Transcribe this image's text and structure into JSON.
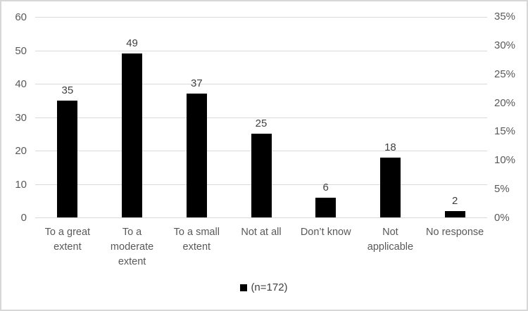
{
  "chart_data": {
    "type": "bar",
    "title": "",
    "xlabel": "",
    "ylabel": "",
    "categories": [
      "To a great extent",
      "To a moderate extent",
      "To a small extent",
      "Not at all",
      "Don’t know",
      "Not applicable",
      "No response"
    ],
    "series": [
      {
        "name": "(n=172)",
        "values": [
          35,
          49,
          37,
          25,
          6,
          18,
          2
        ]
      }
    ],
    "data_labels_shown": true,
    "left_axis": {
      "min": 0,
      "max": 60,
      "tick_step": 10,
      "ticks": [
        "0",
        "10",
        "20",
        "30",
        "40",
        "50",
        "60"
      ]
    },
    "right_axis": {
      "min_percent": 0,
      "max_percent": 35,
      "tick_step_percent": 5,
      "ticks": [
        "0%",
        "5%",
        "10%",
        "15%",
        "20%",
        "25%",
        "30%",
        "35%"
      ],
      "n_total": 172
    },
    "grid": "horizontal",
    "legend_position": "bottom",
    "bar_color": "#000000"
  },
  "legend": {
    "label": "(n=172)",
    "swatch_color": "#000000"
  },
  "colors": {
    "bar": "#000000",
    "gridline": "#d9d9d9",
    "axis_text": "#595959",
    "data_label_text": "#404040",
    "frame_border": "#d7d7d7",
    "background": "#ffffff"
  }
}
